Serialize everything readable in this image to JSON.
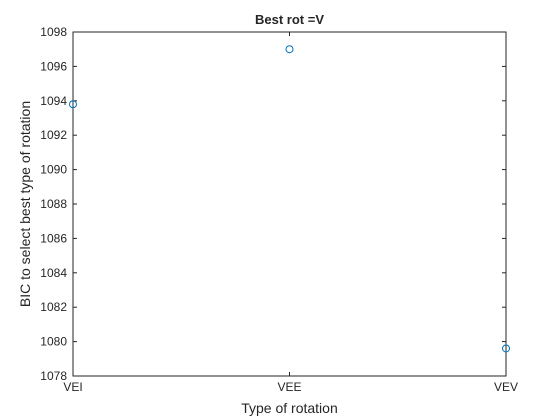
{
  "chart_data": {
    "type": "scatter",
    "title": "Best rot =V",
    "xlabel": "Type of rotation",
    "ylabel": "BIC to select best type of rotation",
    "categories": [
      "VEI",
      "VEE",
      "VEV"
    ],
    "values": [
      1093.8,
      1097.0,
      1079.6
    ],
    "ylim": [
      1078,
      1098
    ],
    "yticks": [
      1078,
      1080,
      1082,
      1084,
      1086,
      1088,
      1090,
      1092,
      1094,
      1096,
      1098
    ],
    "grid": false,
    "marker": "open-circle",
    "colors": {
      "marker": "#0072BD",
      "axes": "#262626"
    }
  }
}
